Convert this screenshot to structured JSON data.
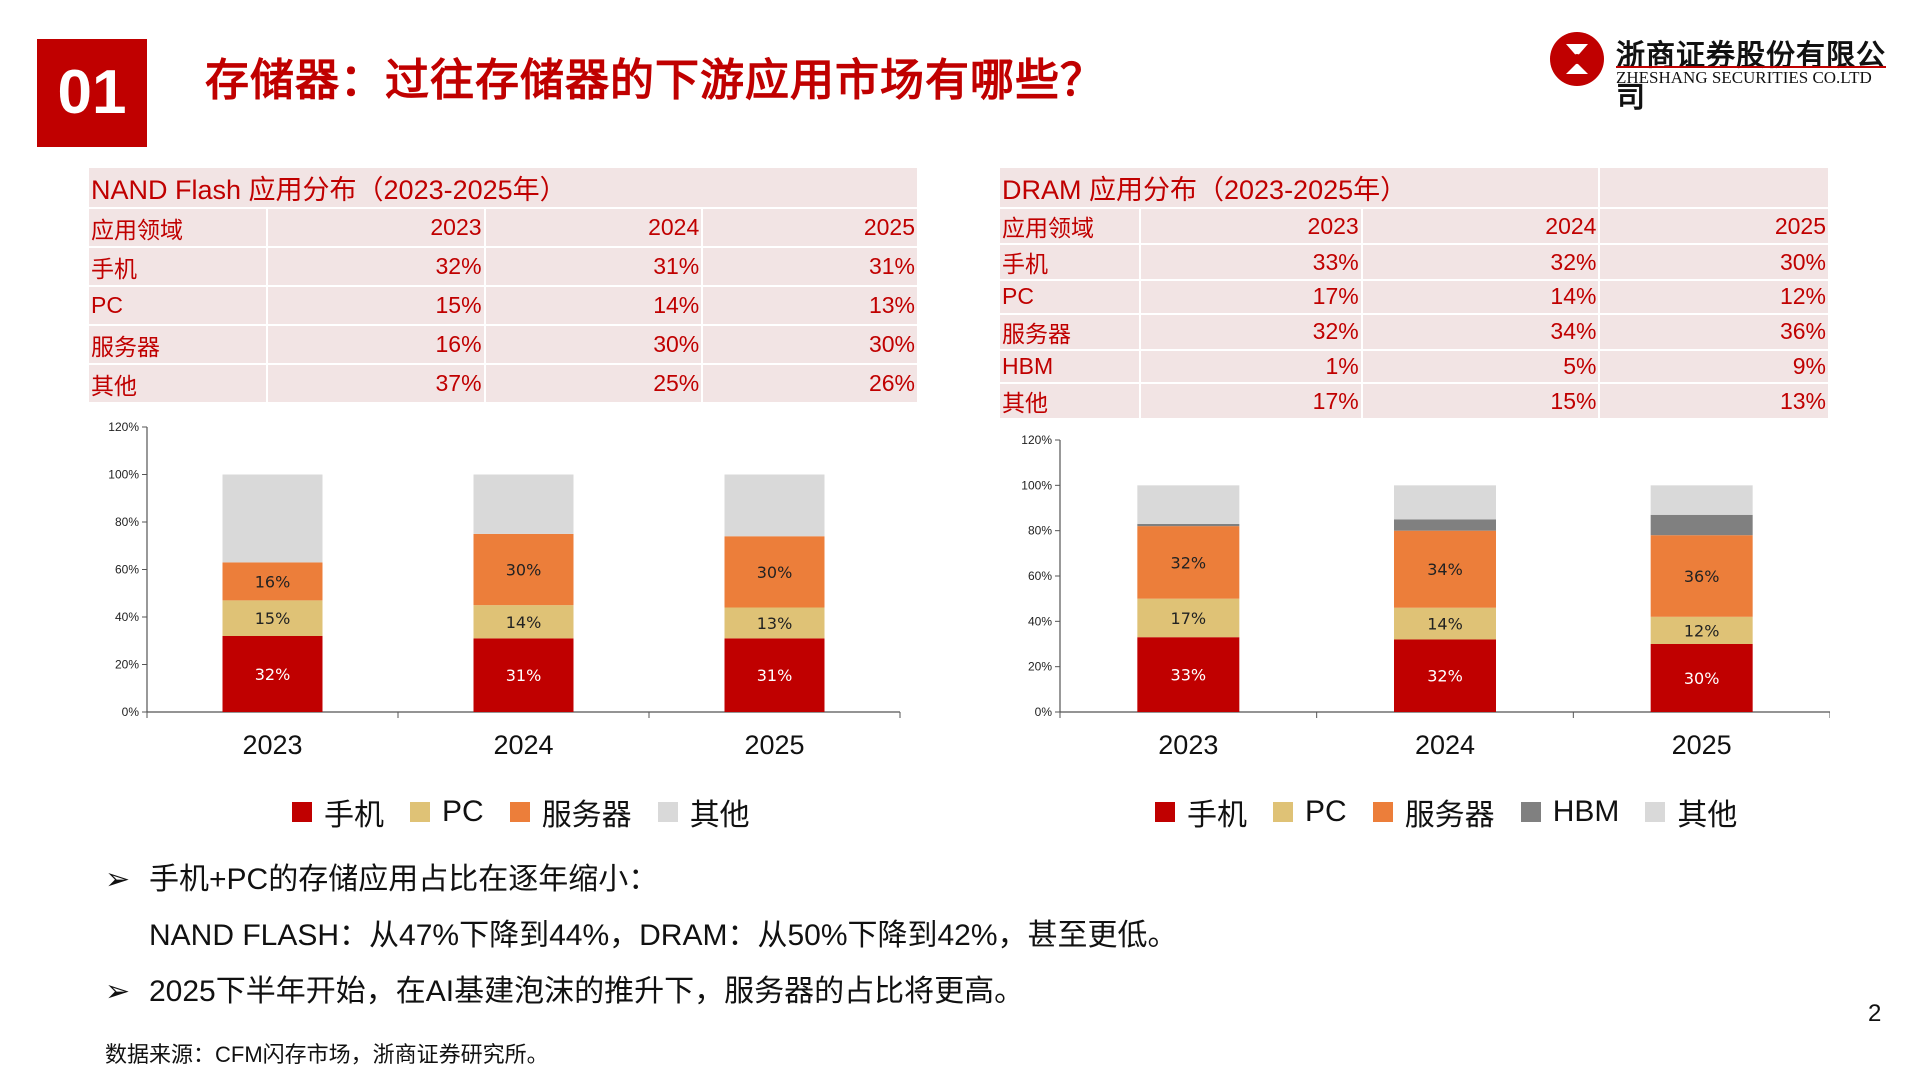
{
  "header": {
    "section_number": "01",
    "title": "存储器：过往存储器的下游应用市场有哪些？",
    "logo_cn": "浙商证券股份有限公司",
    "logo_en": "ZHESHANG SECURITIES CO.LTD"
  },
  "nand_table": {
    "title": "NAND Flash 应用分布（2023-2025年）",
    "col0": "应用领域",
    "years": [
      "2023",
      "2024",
      "2025"
    ],
    "rows": [
      {
        "name": "手机",
        "values": [
          "32%",
          "31%",
          "31%"
        ]
      },
      {
        "name": "PC",
        "values": [
          "15%",
          "14%",
          "13%"
        ]
      },
      {
        "name": "服务器",
        "values": [
          "16%",
          "30%",
          "30%"
        ]
      },
      {
        "name": "其他",
        "values": [
          "37%",
          "25%",
          "26%"
        ]
      }
    ]
  },
  "dram_table": {
    "title": "DRAM 应用分布（2023-2025年）",
    "col0": "应用领域",
    "years": [
      "2023",
      "2024",
      "2025"
    ],
    "rows": [
      {
        "name": "手机",
        "values": [
          "33%",
          "32%",
          "30%"
        ]
      },
      {
        "name": "PC",
        "values": [
          "17%",
          "14%",
          "12%"
        ]
      },
      {
        "name": "服务器",
        "values": [
          "32%",
          "34%",
          "36%"
        ]
      },
      {
        "name": "HBM",
        "values": [
          "1%",
          "5%",
          "9%"
        ]
      },
      {
        "name": "其他",
        "values": [
          "17%",
          "15%",
          "13%"
        ]
      }
    ]
  },
  "colors": {
    "手机": "#c00000",
    "PC": "#dfc276",
    "服务器": "#ec7e3a",
    "HBM": "#808080",
    "其他": "#d9d9d9",
    "brand_red": "#c00000"
  },
  "chart_data": [
    {
      "type": "bar",
      "stacked": true,
      "title": "NAND Flash 应用分布",
      "categories": [
        "2023",
        "2024",
        "2025"
      ],
      "ylim": [
        0,
        120
      ],
      "yticks": [
        "0%",
        "20%",
        "40%",
        "60%",
        "80%",
        "100%",
        "120%"
      ],
      "series": [
        {
          "name": "手机",
          "values": [
            32,
            31,
            31
          ],
          "labels": [
            "32%",
            "31%",
            "31%"
          ]
        },
        {
          "name": "PC",
          "values": [
            15,
            14,
            13
          ],
          "labels": [
            "15%",
            "14%",
            "13%"
          ]
        },
        {
          "name": "服务器",
          "values": [
            16,
            30,
            30
          ],
          "labels": [
            "16%",
            "30%",
            "30%"
          ]
        },
        {
          "name": "其他",
          "values": [
            37,
            25,
            26
          ],
          "labels": [
            "",
            "",
            ""
          ]
        }
      ],
      "legend": [
        "手机",
        "PC",
        "服务器",
        "其他"
      ]
    },
    {
      "type": "bar",
      "stacked": true,
      "title": "DRAM 应用分布",
      "categories": [
        "2023",
        "2024",
        "2025"
      ],
      "ylim": [
        0,
        120
      ],
      "yticks": [
        "0%",
        "20%",
        "40%",
        "60%",
        "80%",
        "100%",
        "120%"
      ],
      "series": [
        {
          "name": "手机",
          "values": [
            33,
            32,
            30
          ],
          "labels": [
            "33%",
            "32%",
            "30%"
          ]
        },
        {
          "name": "PC",
          "values": [
            17,
            14,
            12
          ],
          "labels": [
            "17%",
            "14%",
            "12%"
          ]
        },
        {
          "name": "服务器",
          "values": [
            32,
            34,
            36
          ],
          "labels": [
            "32%",
            "34%",
            "36%"
          ]
        },
        {
          "name": "HBM",
          "values": [
            1,
            5,
            9
          ],
          "labels": [
            "",
            "",
            ""
          ]
        },
        {
          "name": "其他",
          "values": [
            17,
            15,
            13
          ],
          "labels": [
            "",
            "",
            ""
          ]
        }
      ],
      "legend": [
        "手机",
        "PC",
        "服务器",
        "HBM",
        "其他"
      ]
    }
  ],
  "bullets": {
    "arrow": "➢",
    "b1_line1": "手机+PC的存储应用占比在逐年缩小：",
    "b1_line2": "NAND FLASH：从47%下降到44%，DRAM：从50%下降到42%，甚至更低。",
    "b2": "2025下半年开始，在AI基建泡沫的推升下，服务器的占比将更高。"
  },
  "source": "数据来源：CFM闪存市场，浙商证券研究所。",
  "page_number": "2"
}
